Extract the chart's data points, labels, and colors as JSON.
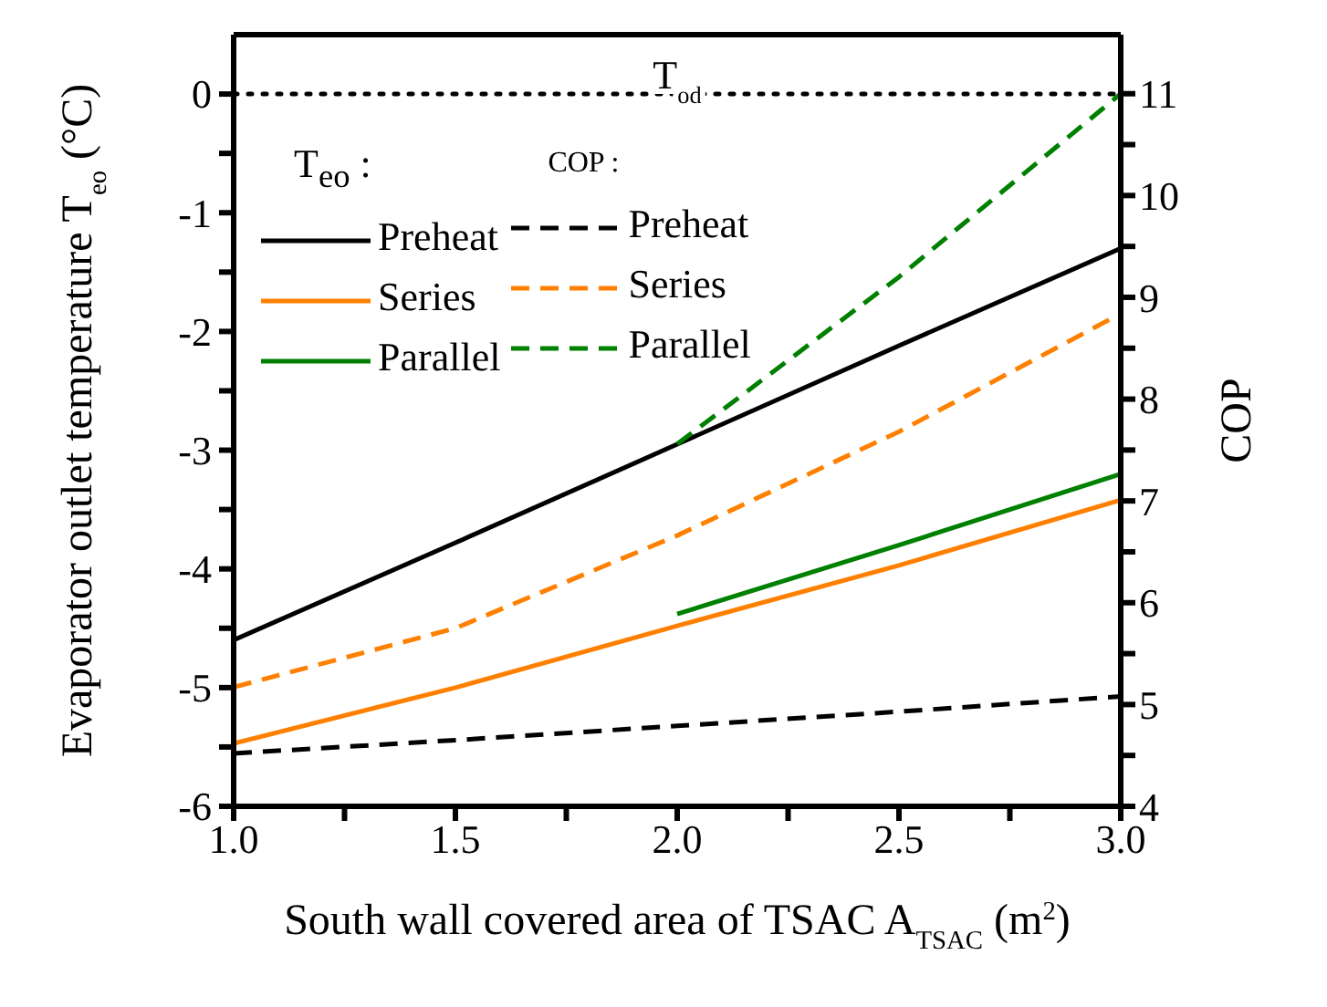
{
  "chart_data": {
    "type": "line",
    "xlabel": "South wall covered area of TSAC A$_{TSAC}$ (m$^{2}$)",
    "ylabel": "Evaporator outlet temperature T$_{eo}$ (°C)",
    "y2label": "COP",
    "x": [
      1.0,
      1.5,
      2.0,
      2.5,
      3.0
    ],
    "xlim": [
      1.0,
      3.0
    ],
    "xticks": [
      {
        "value": 1.0,
        "label": "1.0"
      },
      {
        "value": 1.25,
        "label": null
      },
      {
        "value": 1.5,
        "label": "1.5"
      },
      {
        "value": 1.75,
        "label": null
      },
      {
        "value": 2.0,
        "label": "2.0"
      },
      {
        "value": 2.25,
        "label": null
      },
      {
        "value": 2.5,
        "label": "2.5"
      },
      {
        "value": 2.75,
        "label": null
      },
      {
        "value": 3.0,
        "label": "3.0"
      }
    ],
    "ylim": [
      -6,
      0.5
    ],
    "yticks": [
      -6,
      {
        "value": -5.5,
        "label": null
      },
      -5,
      {
        "value": -4.5,
        "label": null
      },
      -4,
      {
        "value": -3.5,
        "label": null
      },
      -3,
      {
        "value": -2.5,
        "label": null
      },
      -2,
      {
        "value": -1.5,
        "label": null
      },
      -1,
      {
        "value": -0.5,
        "label": null
      },
      0
    ],
    "y2lim": [
      4,
      11.58
    ],
    "y2ticks": [
      4,
      {
        "value": 4.5,
        "label": null
      },
      5,
      {
        "value": 5.5,
        "label": null
      },
      6,
      {
        "value": 6.5,
        "label": null
      },
      7,
      {
        "value": 7.5,
        "label": null
      },
      8,
      {
        "value": 8.5,
        "label": null
      },
      9,
      {
        "value": 9.5,
        "label": null
      },
      10,
      {
        "value": 10.5,
        "label": null
      },
      11
    ],
    "series": [
      {
        "name": "Preheat",
        "color": "#000000",
        "line_style": "solid",
        "values": [
          -4.6,
          -3.78,
          -2.95,
          -2.12,
          -1.3
        ]
      },
      {
        "name": "Series",
        "color": "#ff8000",
        "line_style": "solid",
        "values": [
          -5.47,
          -5.0,
          -4.48,
          -3.97,
          -3.42
        ]
      },
      {
        "name": "Parallel",
        "color": "#008000",
        "line_style": "solid",
        "values": [
          null,
          null,
          -4.38,
          -3.8,
          -3.2
        ]
      },
      {
        "name": "Preheat",
        "color": "#000000",
        "line_style": "dashed",
        "axis": "y2",
        "values": [
          4.52,
          4.65,
          4.79,
          4.93,
          5.08
        ]
      },
      {
        "name": "Series",
        "color": "#ff8000",
        "line_style": "dashed",
        "axis": "y2",
        "values": [
          5.17,
          5.75,
          6.66,
          7.68,
          8.84
        ]
      },
      {
        "name": "Parallel",
        "color": "#008000",
        "line_style": "dashed",
        "axis": "y2",
        "values": [
          null,
          null,
          7.56,
          9.2,
          11.0
        ]
      }
    ],
    "ref_lines": [
      {
        "axis": "y",
        "value": 0,
        "label": "T$_{od}$",
        "line_style": "dotted",
        "color": "#000000"
      }
    ],
    "annotations": [
      "T$_{eo}$ :",
      "COP :"
    ],
    "legend": "top left",
    "marker": "none",
    "grid": false
  }
}
